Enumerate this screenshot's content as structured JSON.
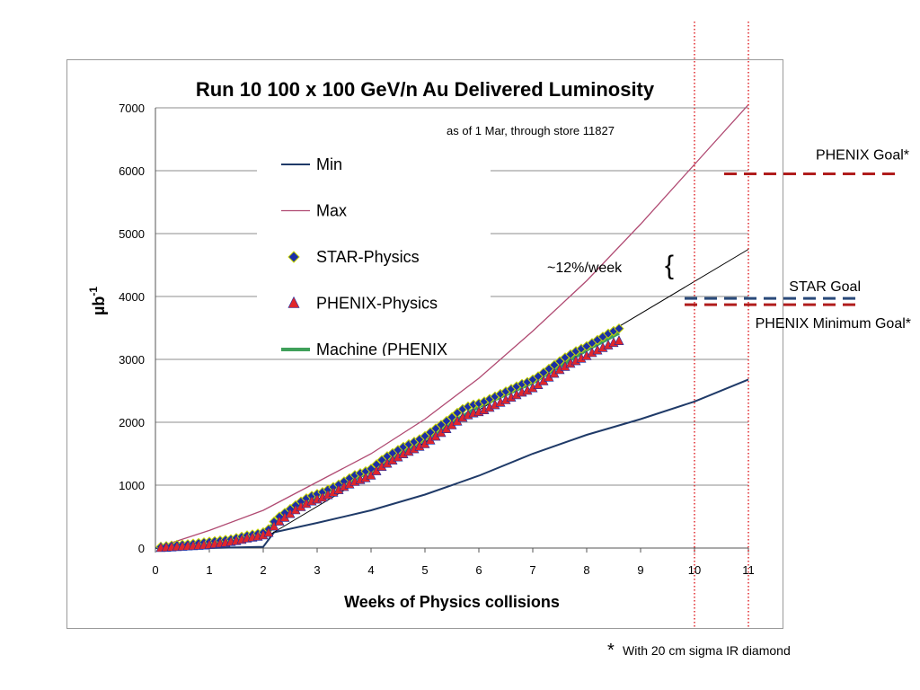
{
  "chart_data": {
    "type": "line",
    "title": "Run 10 100 x 100 GeV/n Au Delivered Luminosity",
    "subtitle": "as of 1 Mar, through store  11827",
    "xlabel": "Weeks of Physics collisions",
    "ylabel": "µb",
    "ylabel_sup": "-1",
    "xlim": [
      0,
      11
    ],
    "ylim": [
      0,
      7000
    ],
    "x_ticks": [
      "0",
      "1",
      "2",
      "3",
      "4",
      "5",
      "6",
      "7",
      "8",
      "9",
      "10",
      "11"
    ],
    "y_ticks": [
      "0",
      "1000",
      "2000",
      "3000",
      "4000",
      "5000",
      "6000",
      "7000"
    ],
    "grid": true,
    "legend_position": "upper-left-center",
    "legend": [
      {
        "key": "min",
        "label": "Min"
      },
      {
        "key": "max",
        "label": "Max"
      },
      {
        "key": "star",
        "label": "STAR-Physics"
      },
      {
        "key": "phenix",
        "label": "PHENIX-Physics"
      },
      {
        "key": "machine",
        "label": "Machine (PHENIX"
      }
    ],
    "colors": {
      "min": "#1f3a68",
      "max": "#b04a72",
      "star_fill": "#1b2fa6",
      "star_edge": "#c9d700",
      "phenix_fill": "#e0262b",
      "phenix_edge": "#1b2fa6",
      "machine": "#3fa05a",
      "phenix_goal": "#b01c1c",
      "star_goal": "#2a4a7a",
      "vline": "#e0262b",
      "trend": "#000000"
    },
    "series": {
      "min": [
        [
          0,
          0
        ],
        [
          1,
          0
        ],
        [
          2,
          20
        ],
        [
          2.2,
          250
        ],
        [
          3,
          400
        ],
        [
          4,
          600
        ],
        [
          5,
          850
        ],
        [
          6,
          1150
        ],
        [
          7,
          1500
        ],
        [
          8,
          1800
        ],
        [
          9,
          2050
        ],
        [
          10,
          2330
        ],
        [
          11,
          2680
        ]
      ],
      "max": [
        [
          0,
          0
        ],
        [
          1,
          280
        ],
        [
          2,
          600
        ],
        [
          3,
          1050
        ],
        [
          4,
          1500
        ],
        [
          5,
          2050
        ],
        [
          6,
          2700
        ],
        [
          7,
          3450
        ],
        [
          8,
          4250
        ],
        [
          9,
          5150
        ],
        [
          10,
          6100
        ],
        [
          11,
          7050
        ]
      ],
      "trend": [
        [
          2,
          150
        ],
        [
          11,
          4750
        ]
      ],
      "star": [
        [
          0.1,
          20
        ],
        [
          0.2,
          30
        ],
        [
          0.3,
          40
        ],
        [
          0.4,
          50
        ],
        [
          0.5,
          55
        ],
        [
          0.6,
          60
        ],
        [
          0.7,
          70
        ],
        [
          0.8,
          80
        ],
        [
          0.9,
          90
        ],
        [
          1.0,
          100
        ],
        [
          1.1,
          110
        ],
        [
          1.2,
          120
        ],
        [
          1.3,
          130
        ],
        [
          1.4,
          140
        ],
        [
          1.5,
          160
        ],
        [
          1.6,
          180
        ],
        [
          1.7,
          200
        ],
        [
          1.8,
          215
        ],
        [
          1.9,
          230
        ],
        [
          2.0,
          250
        ],
        [
          2.1,
          300
        ],
        [
          2.2,
          420
        ],
        [
          2.3,
          500
        ],
        [
          2.4,
          560
        ],
        [
          2.5,
          620
        ],
        [
          2.6,
          680
        ],
        [
          2.7,
          740
        ],
        [
          2.8,
          790
        ],
        [
          2.9,
          830
        ],
        [
          3.0,
          860
        ],
        [
          3.1,
          890
        ],
        [
          3.2,
          930
        ],
        [
          3.3,
          970
        ],
        [
          3.4,
          1010
        ],
        [
          3.5,
          1060
        ],
        [
          3.6,
          1110
        ],
        [
          3.7,
          1160
        ],
        [
          3.8,
          1190
        ],
        [
          3.9,
          1220
        ],
        [
          4.0,
          1260
        ],
        [
          4.1,
          1330
        ],
        [
          4.2,
          1400
        ],
        [
          4.3,
          1460
        ],
        [
          4.4,
          1510
        ],
        [
          4.5,
          1560
        ],
        [
          4.6,
          1610
        ],
        [
          4.7,
          1650
        ],
        [
          4.8,
          1690
        ],
        [
          4.9,
          1730
        ],
        [
          5.0,
          1780
        ],
        [
          5.1,
          1840
        ],
        [
          5.2,
          1900
        ],
        [
          5.3,
          1960
        ],
        [
          5.4,
          2020
        ],
        [
          5.5,
          2080
        ],
        [
          5.6,
          2150
        ],
        [
          5.7,
          2210
        ],
        [
          5.8,
          2250
        ],
        [
          5.9,
          2280
        ],
        [
          6.0,
          2300
        ],
        [
          6.1,
          2330
        ],
        [
          6.2,
          2370
        ],
        [
          6.3,
          2410
        ],
        [
          6.4,
          2450
        ],
        [
          6.5,
          2490
        ],
        [
          6.6,
          2530
        ],
        [
          6.7,
          2570
        ],
        [
          6.8,
          2610
        ],
        [
          6.9,
          2640
        ],
        [
          7.0,
          2680
        ],
        [
          7.1,
          2730
        ],
        [
          7.2,
          2790
        ],
        [
          7.3,
          2850
        ],
        [
          7.4,
          2910
        ],
        [
          7.5,
          2970
        ],
        [
          7.6,
          3030
        ],
        [
          7.7,
          3080
        ],
        [
          7.8,
          3130
        ],
        [
          7.9,
          3170
        ],
        [
          8.0,
          3210
        ],
        [
          8.1,
          3260
        ],
        [
          8.2,
          3310
        ],
        [
          8.3,
          3360
        ],
        [
          8.4,
          3410
        ],
        [
          8.5,
          3450
        ],
        [
          8.6,
          3490
        ]
      ],
      "phenix": [
        [
          0.1,
          0
        ],
        [
          0.2,
          5
        ],
        [
          0.3,
          10
        ],
        [
          0.4,
          15
        ],
        [
          0.5,
          20
        ],
        [
          0.6,
          25
        ],
        [
          0.7,
          30
        ],
        [
          0.8,
          35
        ],
        [
          0.9,
          40
        ],
        [
          1.0,
          50
        ],
        [
          1.1,
          60
        ],
        [
          1.2,
          70
        ],
        [
          1.3,
          80
        ],
        [
          1.4,
          95
        ],
        [
          1.5,
          110
        ],
        [
          1.6,
          130
        ],
        [
          1.7,
          150
        ],
        [
          1.8,
          165
        ],
        [
          1.9,
          180
        ],
        [
          2.0,
          200
        ],
        [
          2.1,
          240
        ],
        [
          2.2,
          340
        ],
        [
          2.3,
          420
        ],
        [
          2.4,
          480
        ],
        [
          2.5,
          540
        ],
        [
          2.6,
          600
        ],
        [
          2.7,
          650
        ],
        [
          2.8,
          700
        ],
        [
          2.9,
          740
        ],
        [
          3.0,
          770
        ],
        [
          3.1,
          800
        ],
        [
          3.2,
          840
        ],
        [
          3.3,
          880
        ],
        [
          3.4,
          920
        ],
        [
          3.5,
          970
        ],
        [
          3.6,
          1010
        ],
        [
          3.7,
          1050
        ],
        [
          3.8,
          1080
        ],
        [
          3.9,
          1110
        ],
        [
          4.0,
          1150
        ],
        [
          4.1,
          1220
        ],
        [
          4.2,
          1290
        ],
        [
          4.3,
          1340
        ],
        [
          4.4,
          1390
        ],
        [
          4.5,
          1440
        ],
        [
          4.6,
          1490
        ],
        [
          4.7,
          1530
        ],
        [
          4.8,
          1570
        ],
        [
          4.9,
          1610
        ],
        [
          5.0,
          1650
        ],
        [
          5.1,
          1710
        ],
        [
          5.2,
          1770
        ],
        [
          5.3,
          1830
        ],
        [
          5.4,
          1890
        ],
        [
          5.5,
          1950
        ],
        [
          5.6,
          2010
        ],
        [
          5.7,
          2070
        ],
        [
          5.8,
          2110
        ],
        [
          5.9,
          2140
        ],
        [
          6.0,
          2160
        ],
        [
          6.1,
          2190
        ],
        [
          6.2,
          2230
        ],
        [
          6.3,
          2270
        ],
        [
          6.4,
          2310
        ],
        [
          6.5,
          2350
        ],
        [
          6.6,
          2390
        ],
        [
          6.7,
          2430
        ],
        [
          6.8,
          2470
        ],
        [
          6.9,
          2500
        ],
        [
          7.0,
          2540
        ],
        [
          7.1,
          2590
        ],
        [
          7.2,
          2650
        ],
        [
          7.3,
          2710
        ],
        [
          7.4,
          2770
        ],
        [
          7.5,
          2830
        ],
        [
          7.6,
          2880
        ],
        [
          7.7,
          2930
        ],
        [
          7.8,
          2970
        ],
        [
          7.9,
          3010
        ],
        [
          8.0,
          3050
        ],
        [
          8.1,
          3100
        ],
        [
          8.2,
          3140
        ],
        [
          8.3,
          3180
        ],
        [
          8.4,
          3220
        ],
        [
          8.5,
          3260
        ],
        [
          8.6,
          3290
        ]
      ],
      "machine": [
        [
          0.1,
          15
        ],
        [
          1.0,
          80
        ],
        [
          2.0,
          230
        ],
        [
          2.2,
          390
        ],
        [
          3.0,
          830
        ],
        [
          4.0,
          1220
        ],
        [
          5.0,
          1730
        ],
        [
          6.0,
          2250
        ],
        [
          7.0,
          2630
        ],
        [
          8.0,
          3150
        ],
        [
          8.6,
          3420
        ]
      ]
    },
    "goals": [
      {
        "key": "phenix_goal",
        "label": "PHENIX Goal*",
        "y": 5950
      },
      {
        "key": "star_goal",
        "label": "STAR Goal",
        "y": 3970
      },
      {
        "key": "phenix_min_goal",
        "label": "PHENIX Minimum Goal*",
        "y": 3870
      }
    ],
    "vlines": [
      10,
      11
    ],
    "annotations": {
      "rate": "~12%/week",
      "brace": "{",
      "footnote_star": "*",
      "footnote": "With 20 cm sigma IR diamond"
    }
  }
}
